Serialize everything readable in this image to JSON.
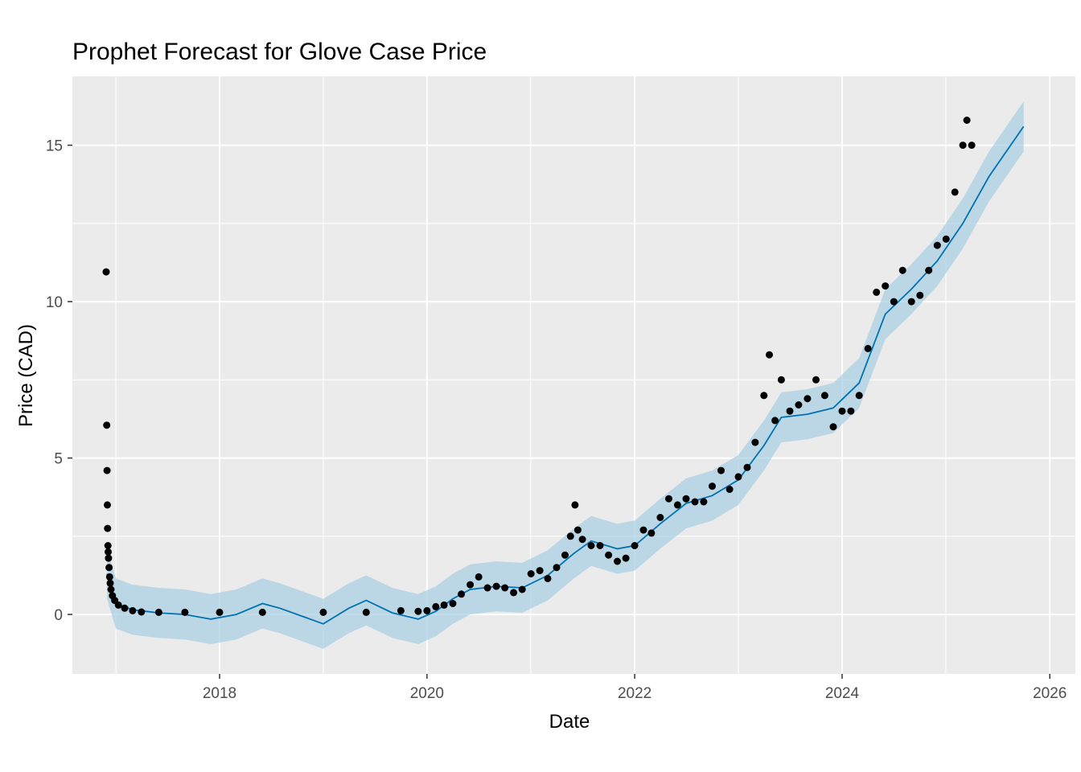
{
  "chart_data": {
    "type": "line",
    "title": "Prophet Forecast for Glove Case Price",
    "xlabel": "Date",
    "ylabel": "Price (CAD)",
    "xlim": [
      "2016-08-01",
      "2026-04-01"
    ],
    "ylim": [
      -1.9,
      17.2
    ],
    "x_ticks": [
      {
        "date": "2018-01-01",
        "label": "2018"
      },
      {
        "date": "2020-01-01",
        "label": "2020"
      },
      {
        "date": "2022-01-01",
        "label": "2022"
      },
      {
        "date": "2024-01-01",
        "label": "2024"
      },
      {
        "date": "2026-01-01",
        "label": "2026"
      }
    ],
    "y_ticks": [
      {
        "value": 0,
        "label": "0"
      },
      {
        "value": 5,
        "label": "5"
      },
      {
        "value": 10,
        "label": "10"
      },
      {
        "value": 15,
        "label": "15"
      }
    ],
    "grid": true,
    "colors": {
      "panel": "#ebebeb",
      "grid": "#ffffff",
      "points": "#000000",
      "forecast_line": "#0072b2",
      "interval_band": "#a6cfe3"
    },
    "series": [
      {
        "type": "scatter",
        "color": "#000000",
        "points": [
          [
            "2016-11-28",
            10.95
          ],
          [
            "2016-11-30",
            6.05
          ],
          [
            "2016-12-01",
            4.6
          ],
          [
            "2016-12-02",
            3.5
          ],
          [
            "2016-12-03",
            2.75
          ],
          [
            "2016-12-04",
            2.2
          ],
          [
            "2016-12-05",
            2.0
          ],
          [
            "2016-12-06",
            1.8
          ],
          [
            "2016-12-08",
            1.5
          ],
          [
            "2016-12-10",
            1.2
          ],
          [
            "2016-12-12",
            1.0
          ],
          [
            "2016-12-15",
            0.8
          ],
          [
            "2016-12-20",
            0.6
          ],
          [
            "2016-12-28",
            0.45
          ],
          [
            "2017-01-10",
            0.3
          ],
          [
            "2017-02-01",
            0.2
          ],
          [
            "2017-03-01",
            0.12
          ],
          [
            "2017-04-01",
            0.08
          ],
          [
            "2017-06-01",
            0.07
          ],
          [
            "2017-09-01",
            0.07
          ],
          [
            "2018-01-01",
            0.07
          ],
          [
            "2018-06-01",
            0.07
          ],
          [
            "2019-01-01",
            0.07
          ],
          [
            "2019-06-01",
            0.07
          ],
          [
            "2019-10-01",
            0.12
          ],
          [
            "2019-12-01",
            0.1
          ],
          [
            "2020-01-01",
            0.12
          ],
          [
            "2020-02-01",
            0.25
          ],
          [
            "2020-03-01",
            0.3
          ],
          [
            "2020-04-01",
            0.35
          ],
          [
            "2020-05-01",
            0.65
          ],
          [
            "2020-06-01",
            0.95
          ],
          [
            "2020-07-01",
            1.2
          ],
          [
            "2020-08-01",
            0.85
          ],
          [
            "2020-09-01",
            0.9
          ],
          [
            "2020-10-01",
            0.85
          ],
          [
            "2020-11-01",
            0.7
          ],
          [
            "2020-12-01",
            0.8
          ],
          [
            "2021-01-01",
            1.3
          ],
          [
            "2021-02-01",
            1.4
          ],
          [
            "2021-03-01",
            1.15
          ],
          [
            "2021-04-01",
            1.5
          ],
          [
            "2021-05-01",
            1.9
          ],
          [
            "2021-05-20",
            2.5
          ],
          [
            "2021-06-05",
            3.5
          ],
          [
            "2021-06-15",
            2.7
          ],
          [
            "2021-07-01",
            2.4
          ],
          [
            "2021-08-01",
            2.2
          ],
          [
            "2021-09-01",
            2.2
          ],
          [
            "2021-10-01",
            1.9
          ],
          [
            "2021-11-01",
            1.7
          ],
          [
            "2021-12-01",
            1.8
          ],
          [
            "2022-01-01",
            2.2
          ],
          [
            "2022-02-01",
            2.7
          ],
          [
            "2022-03-01",
            2.6
          ],
          [
            "2022-04-01",
            3.1
          ],
          [
            "2022-05-01",
            3.7
          ],
          [
            "2022-06-01",
            3.5
          ],
          [
            "2022-07-01",
            3.7
          ],
          [
            "2022-08-01",
            3.6
          ],
          [
            "2022-09-01",
            3.6
          ],
          [
            "2022-10-01",
            4.1
          ],
          [
            "2022-11-01",
            4.6
          ],
          [
            "2022-12-01",
            4.0
          ],
          [
            "2023-01-01",
            4.4
          ],
          [
            "2023-02-01",
            4.7
          ],
          [
            "2023-03-01",
            5.5
          ],
          [
            "2023-04-01",
            7.0
          ],
          [
            "2023-04-20",
            8.3
          ],
          [
            "2023-05-10",
            6.2
          ],
          [
            "2023-06-01",
            7.5
          ],
          [
            "2023-07-01",
            6.5
          ],
          [
            "2023-08-01",
            6.7
          ],
          [
            "2023-09-01",
            6.9
          ],
          [
            "2023-10-01",
            7.5
          ],
          [
            "2023-11-01",
            7.0
          ],
          [
            "2023-12-01",
            6.0
          ],
          [
            "2024-01-01",
            6.5
          ],
          [
            "2024-02-01",
            6.5
          ],
          [
            "2024-03-01",
            7.0
          ],
          [
            "2024-04-01",
            8.5
          ],
          [
            "2024-05-01",
            10.3
          ],
          [
            "2024-06-01",
            10.5
          ],
          [
            "2024-07-01",
            10.0
          ],
          [
            "2024-08-01",
            11.0
          ],
          [
            "2024-09-01",
            10.0
          ],
          [
            "2024-10-01",
            10.2
          ],
          [
            "2024-11-01",
            11.0
          ],
          [
            "2024-12-01",
            11.8
          ],
          [
            "2025-01-01",
            12.0
          ],
          [
            "2025-02-01",
            13.5
          ],
          [
            "2025-03-01",
            15.0
          ],
          [
            "2025-03-15",
            15.8
          ],
          [
            "2025-04-01",
            15.0
          ]
        ]
      },
      {
        "type": "line",
        "name": "",
        "color": "#0072b2",
        "points": [
          [
            "2016-12-01",
            1.3
          ],
          [
            "2017-01-01",
            0.35
          ],
          [
            "2017-03-01",
            0.15
          ],
          [
            "2017-06-01",
            0.05
          ],
          [
            "2017-09-01",
            0.0
          ],
          [
            "2017-12-01",
            -0.15
          ],
          [
            "2018-03-01",
            0.0
          ],
          [
            "2018-06-01",
            0.35
          ],
          [
            "2018-08-01",
            0.2
          ],
          [
            "2018-11-01",
            -0.1
          ],
          [
            "2019-01-01",
            -0.3
          ],
          [
            "2019-04-01",
            0.2
          ],
          [
            "2019-06-01",
            0.45
          ],
          [
            "2019-09-01",
            0.05
          ],
          [
            "2019-12-01",
            -0.15
          ],
          [
            "2020-02-01",
            0.1
          ],
          [
            "2020-04-01",
            0.5
          ],
          [
            "2020-06-01",
            0.8
          ],
          [
            "2020-09-01",
            0.9
          ],
          [
            "2020-12-01",
            0.85
          ],
          [
            "2021-03-01",
            1.25
          ],
          [
            "2021-06-01",
            1.95
          ],
          [
            "2021-08-01",
            2.35
          ],
          [
            "2021-11-01",
            2.1
          ],
          [
            "2022-01-01",
            2.2
          ],
          [
            "2022-04-01",
            2.9
          ],
          [
            "2022-07-01",
            3.55
          ],
          [
            "2022-10-01",
            3.8
          ],
          [
            "2023-01-01",
            4.3
          ],
          [
            "2023-04-01",
            5.4
          ],
          [
            "2023-06-01",
            6.3
          ],
          [
            "2023-09-01",
            6.4
          ],
          [
            "2023-12-01",
            6.6
          ],
          [
            "2024-03-01",
            7.4
          ],
          [
            "2024-06-01",
            9.6
          ],
          [
            "2024-09-01",
            10.4
          ],
          [
            "2024-12-01",
            11.3
          ],
          [
            "2025-03-01",
            12.5
          ],
          [
            "2025-06-01",
            14.0
          ],
          [
            "2025-10-01",
            15.6
          ]
        ]
      },
      {
        "type": "area",
        "name": "",
        "color": "#a6cfe3",
        "band_halfwidth": 0.8
      }
    ]
  }
}
